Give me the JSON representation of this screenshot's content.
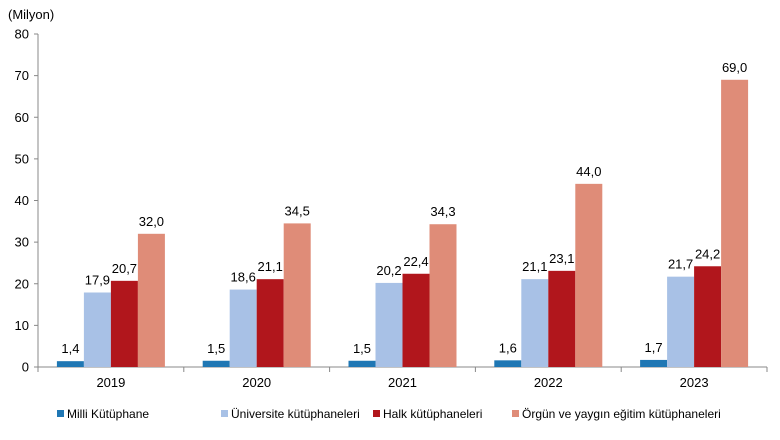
{
  "chart_data": {
    "type": "bar",
    "unit_label": "(Milyon)",
    "categories": [
      "2019",
      "2020",
      "2021",
      "2022",
      "2023"
    ],
    "series": [
      {
        "name": "Milli Kütüphane",
        "color": "#1f77b4",
        "values": [
          1.4,
          1.5,
          1.5,
          1.6,
          1.7
        ],
        "labels": [
          "1,4",
          "1,5",
          "1,5",
          "1,6",
          "1,7"
        ]
      },
      {
        "name": "Üniversite kütüphaneleri",
        "color": "#a8c1e6",
        "values": [
          17.9,
          18.6,
          20.2,
          21.1,
          21.7
        ],
        "labels": [
          "17,9",
          "18,6",
          "20,2",
          "21,1",
          "21,7"
        ]
      },
      {
        "name": "Halk kütüphaneleri",
        "color": "#b1161c",
        "values": [
          20.7,
          21.1,
          22.4,
          23.1,
          24.2
        ],
        "labels": [
          "20,7",
          "21,1",
          "22,4",
          "23,1",
          "24,2"
        ]
      },
      {
        "name": "Örgün ve yaygın eğitim kütüphaneleri",
        "color": "#df8c78",
        "values": [
          32.0,
          34.5,
          34.3,
          44.0,
          69.0
        ],
        "labels": [
          "32,0",
          "34,5",
          "34,3",
          "44,0",
          "69,0"
        ]
      }
    ],
    "ylim": [
      0,
      80
    ],
    "yticks": [
      "0",
      "10",
      "20",
      "30",
      "40",
      "50",
      "60",
      "70",
      "80"
    ],
    "grid": false,
    "legend_position": "bottom"
  }
}
